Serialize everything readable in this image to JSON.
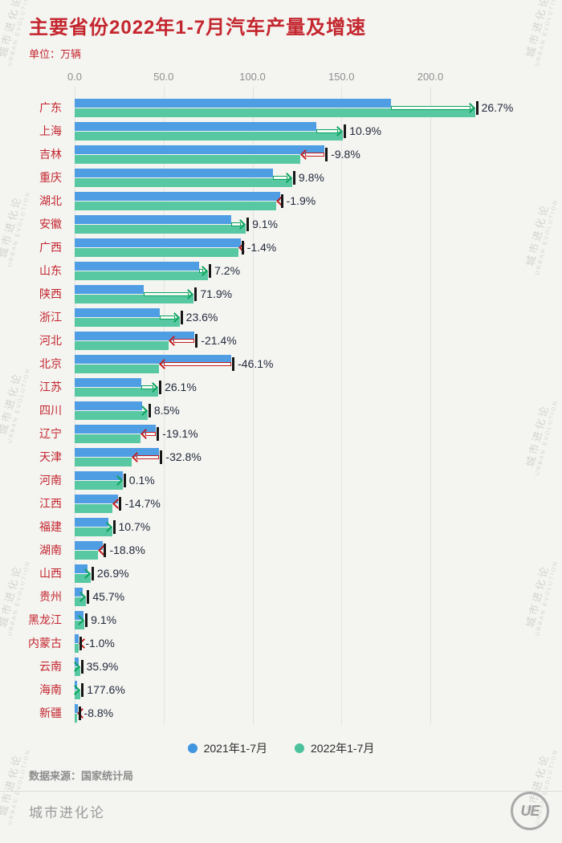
{
  "header": {
    "title": "主要省份2022年1-7月汽车产量及增速",
    "unit": "单位：万辆"
  },
  "watermark": {
    "line1": "城市进化论",
    "line2": "URBAN EVOLUTION"
  },
  "footer": {
    "source": "数据来源：国家统计局",
    "brand": "城市进化论",
    "logo_text": "UE"
  },
  "chart_data": {
    "type": "bar",
    "orientation": "horizontal",
    "title": "主要省份2022年1-7月汽车产量及增速",
    "unit": "万辆",
    "x_ticks": [
      "0.0",
      "50.0",
      "100.0",
      "150.0",
      "200.0"
    ],
    "x_tick_values": [
      0,
      50,
      100,
      150,
      200
    ],
    "xlim": [
      0,
      232
    ],
    "grid": true,
    "legend_position": "bottom",
    "series_names": [
      "2021年1-7月",
      "2022年1-7月"
    ],
    "colors": {
      "bar_2021": "#4f9ee3",
      "bar_2022": "#58c8a2",
      "arrow_up": "#0aa35c",
      "arrow_down": "#c21d1d",
      "title": "#c4262e",
      "background": "#f4f4f1"
    },
    "rows": [
      {
        "province": "广东",
        "v2021": 177.7,
        "v2022": 225.1,
        "growth": "26.7%"
      },
      {
        "province": "上海",
        "v2021": 136.1,
        "v2022": 150.9,
        "growth": "10.9%"
      },
      {
        "province": "吉林",
        "v2021": 140.5,
        "v2022": 126.7,
        "growth": "-9.8%"
      },
      {
        "province": "重庆",
        "v2021": 111.4,
        "v2022": 122.3,
        "growth": "9.8%"
      },
      {
        "province": "湖北",
        "v2021": 115.4,
        "v2022": 113.2,
        "growth": "-1.9%"
      },
      {
        "province": "安徽",
        "v2021": 88.2,
        "v2022": 96.2,
        "growth": "9.1%"
      },
      {
        "province": "广西",
        "v2021": 93.3,
        "v2022": 92.0,
        "growth": "-1.4%"
      },
      {
        "province": "山东",
        "v2021": 70.0,
        "v2022": 75.0,
        "growth": "7.2%"
      },
      {
        "province": "陕西",
        "v2021": 39.0,
        "v2022": 67.0,
        "growth": "71.9%"
      },
      {
        "province": "浙江",
        "v2021": 47.7,
        "v2022": 59.0,
        "growth": "23.6%"
      },
      {
        "province": "河北",
        "v2021": 67.4,
        "v2022": 53.0,
        "growth": "-21.4%"
      },
      {
        "province": "北京",
        "v2021": 88.1,
        "v2022": 47.5,
        "growth": "-46.1%"
      },
      {
        "province": "江苏",
        "v2021": 37.3,
        "v2022": 47.0,
        "growth": "26.1%"
      },
      {
        "province": "四川",
        "v2021": 37.8,
        "v2022": 41.0,
        "growth": "8.5%"
      },
      {
        "province": "辽宁",
        "v2021": 45.7,
        "v2022": 37.0,
        "growth": "-19.1%"
      },
      {
        "province": "天津",
        "v2021": 47.6,
        "v2022": 32.0,
        "growth": "-32.8%"
      },
      {
        "province": "河南",
        "v2021": 27.0,
        "v2022": 27.0,
        "growth": "0.1%"
      },
      {
        "province": "江西",
        "v2021": 24.6,
        "v2022": 21.0,
        "growth": "-14.7%"
      },
      {
        "province": "福建",
        "v2021": 19.0,
        "v2022": 21.0,
        "growth": "10.7%"
      },
      {
        "province": "湖南",
        "v2021": 16.0,
        "v2022": 13.0,
        "growth": "-18.8%"
      },
      {
        "province": "山西",
        "v2021": 7.1,
        "v2022": 9.0,
        "growth": "26.9%"
      },
      {
        "province": "贵州",
        "v2021": 4.5,
        "v2022": 6.5,
        "growth": "45.7%"
      },
      {
        "province": "黑龙江",
        "v2021": 5.0,
        "v2022": 5.5,
        "growth": "9.1%"
      },
      {
        "province": "内蒙古",
        "v2021": 2.4,
        "v2022": 2.4,
        "growth": "-1.0%"
      },
      {
        "province": "云南",
        "v2021": 2.2,
        "v2022": 3.0,
        "growth": "35.9%"
      },
      {
        "province": "海南",
        "v2021": 1.2,
        "v2022": 3.3,
        "growth": "177.6%"
      },
      {
        "province": "新疆",
        "v2021": 1.6,
        "v2022": 1.5,
        "growth": "-8.8%"
      }
    ]
  }
}
